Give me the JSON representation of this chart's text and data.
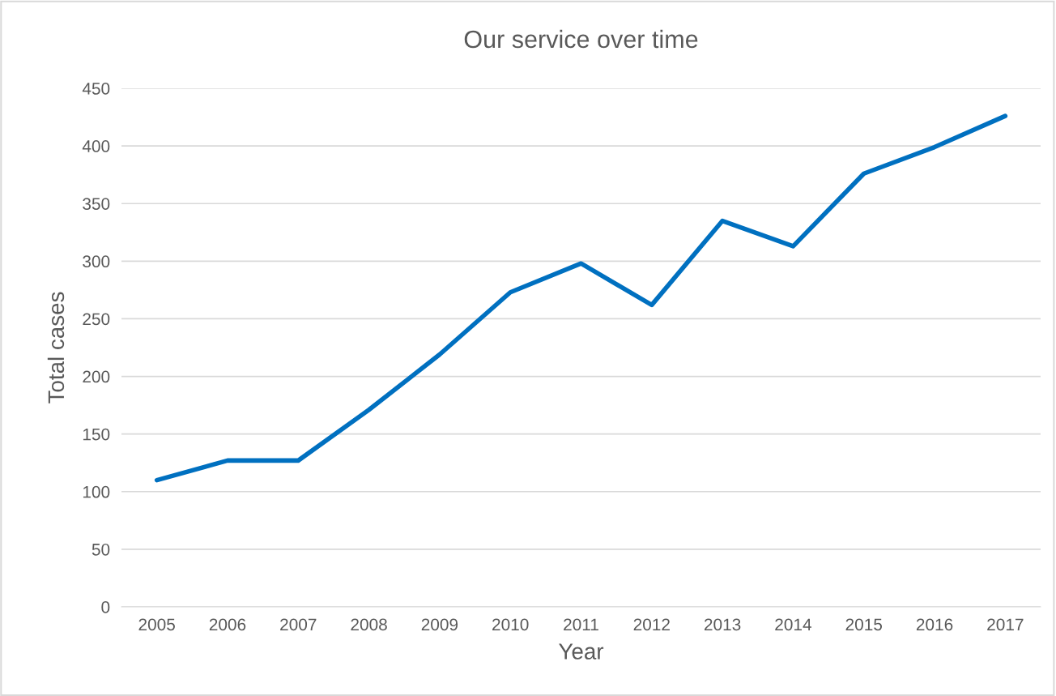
{
  "chart_data": {
    "type": "line",
    "title": "Our service over time",
    "xlabel": "Year",
    "ylabel": "Total cases",
    "categories": [
      "2005",
      "2006",
      "2007",
      "2008",
      "2009",
      "2010",
      "2011",
      "2012",
      "2013",
      "2014",
      "2015",
      "2016",
      "2017"
    ],
    "series": [
      {
        "color": "#0070c0",
        "values": [
          110,
          127,
          127,
          171,
          219,
          273,
          298,
          262,
          335,
          313,
          376,
          399,
          426
        ]
      }
    ],
    "ylim": [
      0,
      450
    ],
    "yticks": [
      0,
      50,
      100,
      150,
      200,
      250,
      300,
      350,
      400,
      450
    ],
    "grid": "y",
    "legend": false,
    "marker": "none",
    "line_style": "solid"
  }
}
